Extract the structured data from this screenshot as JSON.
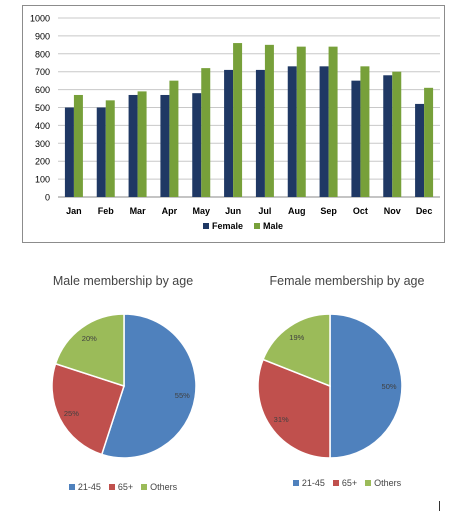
{
  "colors": {
    "female_bar": "#1F3864",
    "male_bar": "#77A03A",
    "pie_21_45": "#4F81BD",
    "pie_65_plus": "#C0504D",
    "pie_others": "#9BBB59",
    "grid": "#c8c8c8",
    "axis_text": "#000000"
  },
  "chart_data": [
    {
      "type": "bar",
      "categories": [
        "Jan",
        "Feb",
        "Mar",
        "Apr",
        "May",
        "Jun",
        "Jul",
        "Aug",
        "Sep",
        "Oct",
        "Nov",
        "Dec"
      ],
      "series": [
        {
          "name": "Female",
          "values": [
            500,
            500,
            570,
            570,
            580,
            710,
            710,
            730,
            730,
            650,
            680,
            520
          ]
        },
        {
          "name": "Male",
          "values": [
            570,
            540,
            590,
            650,
            720,
            860,
            850,
            840,
            840,
            730,
            700,
            610
          ]
        }
      ],
      "ylim": [
        0,
        1000
      ],
      "yticks": [
        "0",
        "100",
        "200",
        "300",
        "400",
        "500",
        "600",
        "700",
        "800",
        "900",
        "1000"
      ],
      "grid": true,
      "legend": "bottom"
    },
    {
      "type": "pie",
      "title": "Male membership by age",
      "labels": [
        "21-45",
        "65+",
        "Others"
      ],
      "values": [
        55,
        25,
        20
      ],
      "value_labels": [
        "55%",
        "25%",
        "20%"
      ],
      "legend": "bottom"
    },
    {
      "type": "pie",
      "title": "Female membership by age",
      "labels": [
        "21-45",
        "65+",
        "Others"
      ],
      "values": [
        50,
        31,
        19
      ],
      "value_labels": [
        "50%",
        "31%",
        "19%"
      ],
      "legend": "bottom"
    }
  ]
}
